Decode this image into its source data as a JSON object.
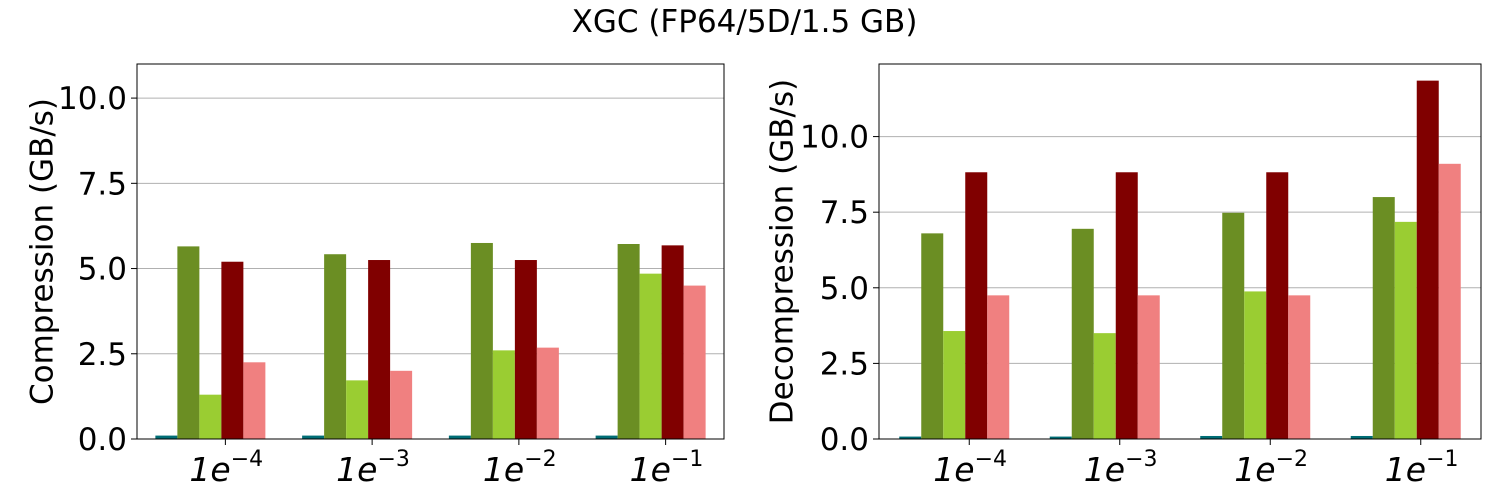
{
  "figure": {
    "title": "XGC (FP64/5D/1.5 GB)"
  },
  "chart_data": [
    {
      "type": "bar",
      "categories": [
        "1e-4",
        "1e-3",
        "1e-2",
        "1e-1"
      ],
      "category_labels": [
        {
          "base": "1e",
          "exp": "−4"
        },
        {
          "base": "1e",
          "exp": "−3"
        },
        {
          "base": "1e",
          "exp": "−2"
        },
        {
          "base": "1e",
          "exp": "−1"
        }
      ],
      "ylabel": "Compression (GB/s)",
      "xlabel": "",
      "ylim": [
        0,
        11
      ],
      "yticks": [
        0,
        2.5,
        5,
        7.5,
        10
      ],
      "ytick_labels": [
        "0.0",
        "2.5",
        "5.0",
        "7.5",
        "10.0"
      ],
      "grid": "y",
      "series": [
        {
          "color": "#006d75",
          "values": [
            0.1,
            0.1,
            0.1,
            0.1
          ]
        },
        {
          "color": "#6b8e23",
          "values": [
            5.65,
            5.42,
            5.75,
            5.72
          ]
        },
        {
          "color": "#9acd32",
          "values": [
            1.3,
            1.72,
            2.6,
            4.85
          ]
        },
        {
          "color": "#800000",
          "values": [
            5.2,
            5.25,
            5.25,
            5.68
          ]
        },
        {
          "color": "#f08080",
          "values": [
            2.25,
            2.0,
            2.68,
            4.5
          ]
        }
      ]
    },
    {
      "type": "bar",
      "categories": [
        "1e-4",
        "1e-3",
        "1e-2",
        "1e-1"
      ],
      "category_labels": [
        {
          "base": "1e",
          "exp": "−4"
        },
        {
          "base": "1e",
          "exp": "−3"
        },
        {
          "base": "1e",
          "exp": "−2"
        },
        {
          "base": "1e",
          "exp": "−1"
        }
      ],
      "ylabel": "Decompression (GB/s)",
      "xlabel": "",
      "ylim": [
        0,
        12.4
      ],
      "yticks": [
        0,
        2.5,
        5,
        7.5,
        10
      ],
      "ytick_labels": [
        "0.0",
        "2.5",
        "5.0",
        "7.5",
        "10.0"
      ],
      "grid": "y",
      "series": [
        {
          "color": "#006d75",
          "values": [
            0.08,
            0.08,
            0.1,
            0.1
          ]
        },
        {
          "color": "#6b8e23",
          "values": [
            6.8,
            6.95,
            7.48,
            8.0
          ]
        },
        {
          "color": "#9acd32",
          "values": [
            3.57,
            3.5,
            4.88,
            7.18
          ]
        },
        {
          "color": "#800000",
          "values": [
            8.82,
            8.82,
            8.82,
            11.85
          ]
        },
        {
          "color": "#f08080",
          "values": [
            4.75,
            4.75,
            4.75,
            9.1
          ]
        }
      ]
    }
  ]
}
